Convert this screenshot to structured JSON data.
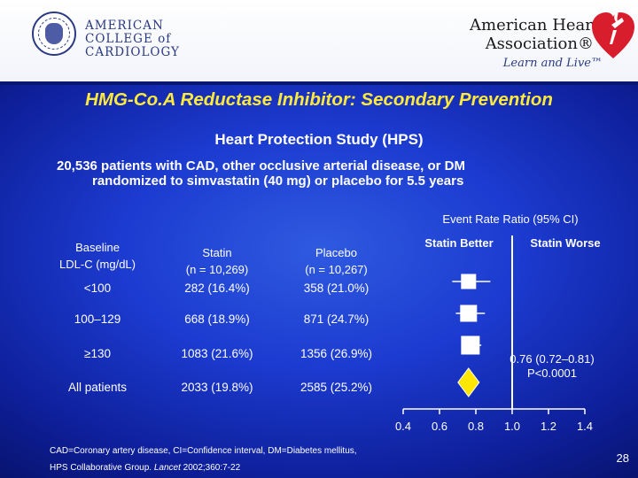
{
  "header": {
    "acc_lines": [
      "AMERICAN",
      "COLLEGE of",
      "CARDIOLOGY"
    ],
    "aha_lines": [
      "American Heart",
      "Association®"
    ],
    "aha_tagline": "Learn and Live™"
  },
  "slide": {
    "title": "HMG-Co.A Reductase Inhibitor: Secondary Prevention",
    "subtitle": "Heart Protection Study (HPS)",
    "description_lines": [
      "20,536 patients with CAD, other occlusive arterial disease, or DM",
      "randomized to simvastatin (40 mg) or placebo for 5.5 years"
    ],
    "page_number": "28"
  },
  "table": {
    "columns": [
      {
        "line1": "Baseline",
        "line2": "LDL-C (mg/dL)"
      },
      {
        "line1": "Statin",
        "line2": "(n = 10,269)"
      },
      {
        "line1": "Placebo",
        "line2": "(n = 10,267)"
      }
    ],
    "rows": [
      {
        "label": "<100",
        "statin": "282 (16.4%)",
        "placebo": "358 (21.0%)"
      },
      {
        "label": "100–129",
        "statin": "668 (18.9%)",
        "placebo": "871 (24.7%)"
      },
      {
        "label": "≥130",
        "statin": "1083 (21.6%)",
        "placebo": "1356 (26.9%)"
      },
      {
        "label": "All patients",
        "statin": "2033 (19.8%)",
        "placebo": "2585 (25.2%)"
      }
    ]
  },
  "chart_data": {
    "type": "forest",
    "title": "Event Rate Ratio (95% CI)",
    "left_label": "Statin Better",
    "right_label": "Statin Worse",
    "reference_value": 1.0,
    "xlim": [
      0.4,
      1.4
    ],
    "x_ticks": [
      "0.4",
      "0.6",
      "0.8",
      "1.0",
      "1.2",
      "1.4"
    ],
    "points": [
      {
        "label": "<100",
        "estimate": 0.76,
        "ci_low": 0.67,
        "ci_high": 0.88,
        "weight": 0.6
      },
      {
        "label": "100–129",
        "estimate": 0.76,
        "ci_low": 0.69,
        "ci_high": 0.85,
        "weight": 0.8
      },
      {
        "label": "≥130",
        "estimate": 0.77,
        "ci_low": 0.72,
        "ci_high": 0.83,
        "weight": 1.0
      },
      {
        "label": "All patients",
        "estimate": 0.76,
        "ci_low": 0.72,
        "ci_high": 0.81,
        "summary": true
      }
    ],
    "summary_text": "0.76 (0.72–0.81)",
    "p_value_text": "P<0.0001"
  },
  "footnote": {
    "line1": "CAD=Coronary artery disease, CI=Confidence interval, DM=Diabetes mellitus,",
    "line2_plain": "HPS Collaborative Group. ",
    "line2_journal": "Lancet",
    "line2_rest": " 2002;360:7-22"
  },
  "colors": {
    "title": "#ffea3c",
    "background": "#1c3bd0",
    "summary_diamond": "#ffe600"
  }
}
